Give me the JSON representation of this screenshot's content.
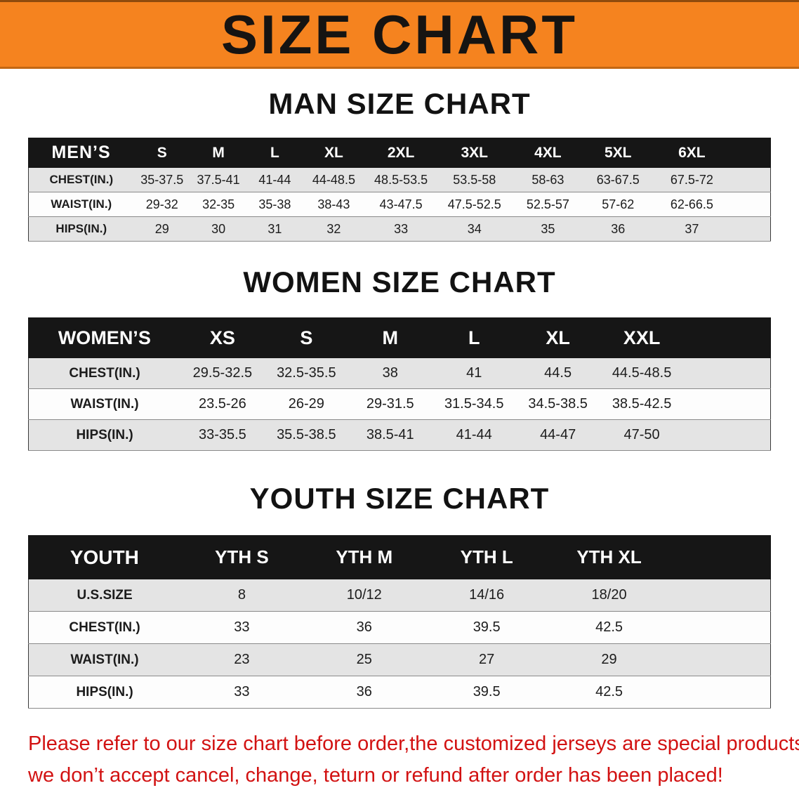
{
  "banner": {
    "title": "SIZE CHART"
  },
  "men": {
    "heading": "MAN SIZE CHART",
    "table": {
      "header": [
        "MEN’S",
        "S",
        "M",
        "L",
        "XL",
        "2XL",
        "3XL",
        "4XL",
        "5XL",
        "6XL"
      ],
      "rows": [
        [
          "CHEST(IN.)",
          "35-37.5",
          "37.5-41",
          "41-44",
          "44-48.5",
          "48.5-53.5",
          "53.5-58",
          "58-63",
          "63-67.5",
          "67.5-72"
        ],
        [
          "WAIST(IN.)",
          "29-32",
          "32-35",
          "35-38",
          "38-43",
          "43-47.5",
          "47.5-52.5",
          "52.5-57",
          "57-62",
          "62-66.5"
        ],
        [
          "HIPS(IN.)",
          "29",
          "30",
          "31",
          "32",
          "33",
          "34",
          "35",
          "36",
          "37"
        ]
      ]
    }
  },
  "women": {
    "heading": "WOMEN SIZE CHART",
    "table": {
      "header": [
        "WOMEN’S",
        "XS",
        "S",
        "M",
        "L",
        "XL",
        "XXL"
      ],
      "rows": [
        [
          "CHEST(IN.)",
          "29.5-32.5",
          "32.5-35.5",
          "38",
          "41",
          "44.5",
          "44.5-48.5"
        ],
        [
          "WAIST(IN.)",
          "23.5-26",
          "26-29",
          "29-31.5",
          "31.5-34.5",
          "34.5-38.5",
          "38.5-42.5"
        ],
        [
          "HIPS(IN.)",
          "33-35.5",
          "35.5-38.5",
          "38.5-41",
          "41-44",
          "44-47",
          "47-50"
        ]
      ]
    }
  },
  "youth": {
    "heading": "YOUTH SIZE CHART",
    "table": {
      "header": [
        "YOUTH",
        "YTH S",
        "YTH M",
        "YTH L",
        "YTH XL"
      ],
      "rows": [
        [
          "U.S.SIZE",
          "8",
          "10/12",
          "14/16",
          "18/20"
        ],
        [
          "CHEST(IN.)",
          "33",
          "36",
          "39.5",
          "42.5"
        ],
        [
          "WAIST(IN.)",
          "23",
          "25",
          "27",
          "29"
        ],
        [
          "HIPS(IN.)",
          "33",
          "36",
          "39.5",
          "42.5"
        ]
      ]
    }
  },
  "disclaimer": {
    "line1": "Please refer to our size chart before order,the customized jerseys are special products,",
    "line2": "we don’t accept cancel, change, teturn or refund after order has been placed!"
  },
  "colors": {
    "banner_bg": "#f5831f",
    "banner_text": "#161412",
    "header_bg": "#161616",
    "stripe": "#e4e4e4",
    "plain": "#fdfdfd",
    "disclaimer": "#d21212"
  }
}
